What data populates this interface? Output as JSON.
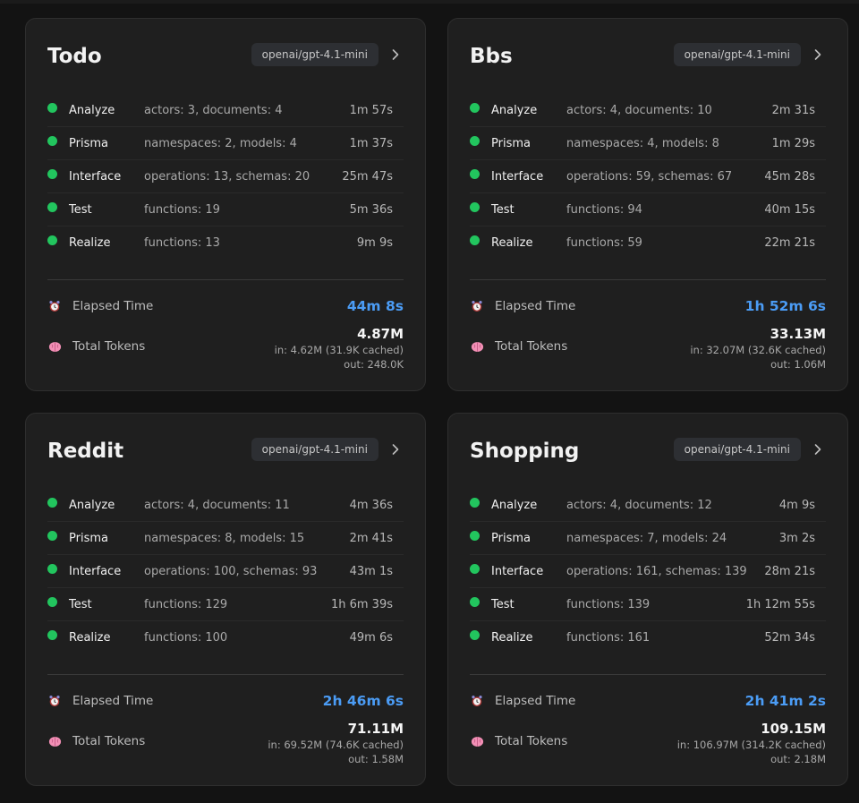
{
  "labels": {
    "elapsed": "Elapsed Time",
    "tokens": "Total Tokens"
  },
  "colors": {
    "status_dot": "#22c55e",
    "elapsed_value": "#4b9cf5",
    "card_bg": "#1f1f1f",
    "page_bg": "#131313"
  },
  "cards": [
    {
      "title": "Todo",
      "model": "openai/gpt-4.1-mini",
      "steps": [
        {
          "name": "Analyze",
          "detail": "actors: 3, documents: 4",
          "time": "1m 57s"
        },
        {
          "name": "Prisma",
          "detail": "namespaces: 2, models: 4",
          "time": "1m 37s"
        },
        {
          "name": "Interface",
          "detail": "operations: 13, schemas: 20",
          "time": "25m 47s"
        },
        {
          "name": "Test",
          "detail": "functions: 19",
          "time": "5m 36s"
        },
        {
          "name": "Realize",
          "detail": "functions: 13",
          "time": "9m 9s"
        }
      ],
      "elapsed": "44m 8s",
      "tokens_total": "4.87M",
      "tokens_in": "in: 4.62M (31.9K cached)",
      "tokens_out": "out: 248.0K"
    },
    {
      "title": "Bbs",
      "model": "openai/gpt-4.1-mini",
      "steps": [
        {
          "name": "Analyze",
          "detail": "actors: 4, documents: 10",
          "time": "2m 31s"
        },
        {
          "name": "Prisma",
          "detail": "namespaces: 4, models: 8",
          "time": "1m 29s"
        },
        {
          "name": "Interface",
          "detail": "operations: 59, schemas: 67",
          "time": "45m 28s"
        },
        {
          "name": "Test",
          "detail": "functions: 94",
          "time": "40m 15s"
        },
        {
          "name": "Realize",
          "detail": "functions: 59",
          "time": "22m 21s"
        }
      ],
      "elapsed": "1h 52m 6s",
      "tokens_total": "33.13M",
      "tokens_in": "in: 32.07M (32.6K cached)",
      "tokens_out": "out: 1.06M"
    },
    {
      "title": "Reddit",
      "model": "openai/gpt-4.1-mini",
      "steps": [
        {
          "name": "Analyze",
          "detail": "actors: 4, documents: 11",
          "time": "4m 36s"
        },
        {
          "name": "Prisma",
          "detail": "namespaces: 8, models: 15",
          "time": "2m 41s"
        },
        {
          "name": "Interface",
          "detail": "operations: 100, schemas: 93",
          "time": "43m 1s"
        },
        {
          "name": "Test",
          "detail": "functions: 129",
          "time": "1h 6m 39s"
        },
        {
          "name": "Realize",
          "detail": "functions: 100",
          "time": "49m 6s"
        }
      ],
      "elapsed": "2h 46m 6s",
      "tokens_total": "71.11M",
      "tokens_in": "in: 69.52M (74.6K cached)",
      "tokens_out": "out: 1.58M"
    },
    {
      "title": "Shopping",
      "model": "openai/gpt-4.1-mini",
      "steps": [
        {
          "name": "Analyze",
          "detail": "actors: 4, documents: 12",
          "time": "4m 9s"
        },
        {
          "name": "Prisma",
          "detail": "namespaces: 7, models: 24",
          "time": "3m 2s"
        },
        {
          "name": "Interface",
          "detail": "operations: 161, schemas: 139",
          "time": "28m 21s"
        },
        {
          "name": "Test",
          "detail": "functions: 139",
          "time": "1h 12m 55s"
        },
        {
          "name": "Realize",
          "detail": "functions: 161",
          "time": "52m 34s"
        }
      ],
      "elapsed": "2h 41m 2s",
      "tokens_total": "109.15M",
      "tokens_in": "in: 106.97M (314.2K cached)",
      "tokens_out": "out: 2.18M"
    }
  ]
}
